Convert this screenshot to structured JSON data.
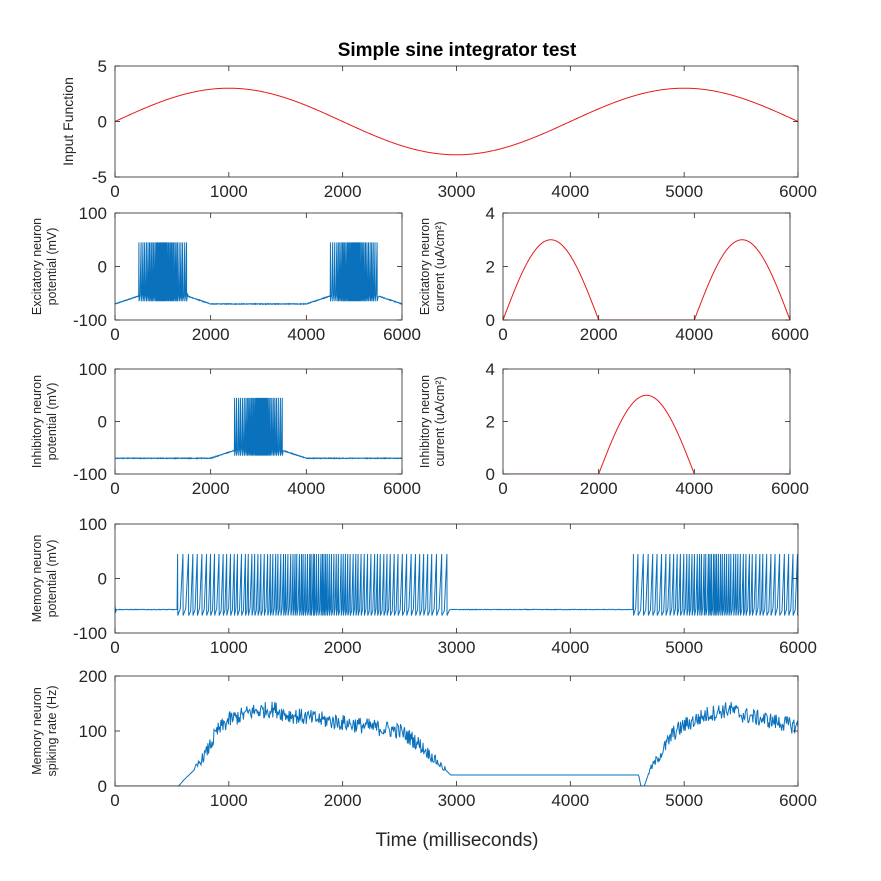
{
  "title": "Simple sine integrator test",
  "colors": {
    "red": "#e8191c",
    "blue": "#0a72bd",
    "axis": "#262626"
  },
  "chart_data": [
    {
      "id": "input",
      "type": "line",
      "title": "Simple sine integrator test",
      "ylabel": [
        "Input Function"
      ],
      "xlabel": "",
      "xlim": [
        0,
        6000
      ],
      "ylim": [
        -5,
        5
      ],
      "xticks": [
        0,
        1000,
        2000,
        3000,
        4000,
        5000,
        6000
      ],
      "yticks": [
        -5,
        0,
        5
      ],
      "series": [
        {
          "color": "red",
          "kind": "sine",
          "amplitude": 3,
          "period": 4000
        }
      ]
    },
    {
      "id": "exc_v",
      "type": "line",
      "ylabel": [
        "Excitatory neuron",
        "potential (mV)"
      ],
      "xlim": [
        0,
        6000
      ],
      "ylim": [
        -100,
        100
      ],
      "xticks": [
        0,
        2000,
        4000,
        6000
      ],
      "yticks": [
        -100,
        0,
        100
      ],
      "series": [
        {
          "color": "blue",
          "kind": "spikes",
          "rest": -70,
          "plateau": -55,
          "peak": 45,
          "trough": -65,
          "bursts": [
            [
              500,
              1500
            ],
            [
              4500,
              5500
            ]
          ],
          "rises": [
            [
              0,
              500,
              1500,
              2000
            ],
            [
              4000,
              4500,
              5500,
              6000
            ]
          ]
        }
      ]
    },
    {
      "id": "exc_i",
      "type": "line",
      "ylabel": [
        "Excitatory neuron",
        "current (uA/cm²)"
      ],
      "xlim": [
        0,
        6000
      ],
      "ylim": [
        0,
        4
      ],
      "xticks": [
        0,
        2000,
        4000,
        6000
      ],
      "yticks": [
        0,
        2,
        4
      ],
      "series": [
        {
          "color": "red",
          "kind": "halfwave",
          "sign": 1,
          "amplitude": 3,
          "period": 4000
        }
      ]
    },
    {
      "id": "inh_v",
      "type": "line",
      "ylabel": [
        "Inhibitory neuron",
        "potential (mV)"
      ],
      "xlim": [
        0,
        6000
      ],
      "ylim": [
        -100,
        100
      ],
      "xticks": [
        0,
        2000,
        4000,
        6000
      ],
      "yticks": [
        -100,
        0,
        100
      ],
      "series": [
        {
          "color": "blue",
          "kind": "spikes",
          "rest": -70,
          "plateau": -55,
          "peak": 45,
          "trough": -65,
          "bursts": [
            [
              2500,
              3500
            ]
          ],
          "rises": [
            [
              2000,
              2500,
              3500,
              4000
            ]
          ]
        }
      ]
    },
    {
      "id": "inh_i",
      "type": "line",
      "ylabel": [
        "Inhibitory neuron",
        "current (uA/cm²)"
      ],
      "xlim": [
        0,
        6000
      ],
      "ylim": [
        0,
        4
      ],
      "xticks": [
        0,
        2000,
        4000,
        6000
      ],
      "yticks": [
        0,
        2,
        4
      ],
      "series": [
        {
          "color": "red",
          "kind": "halfwave",
          "sign": -1,
          "amplitude": 3,
          "period": 4000
        }
      ]
    },
    {
      "id": "mem_v",
      "type": "line",
      "ylabel": [
        "Memory neuron",
        "potential (mV)"
      ],
      "xlim": [
        0,
        6000
      ],
      "ylim": [
        -100,
        100
      ],
      "xticks": [
        0,
        1000,
        2000,
        3000,
        4000,
        5000,
        6000
      ],
      "yticks": [
        -100,
        0,
        100
      ],
      "series": [
        {
          "color": "blue",
          "kind": "spikes",
          "rest": -57,
          "plateau": -57,
          "peak": 45,
          "trough": -68,
          "bursts": [
            [
              550,
              2950
            ],
            [
              4550,
              6000
            ]
          ],
          "rises": []
        }
      ]
    },
    {
      "id": "mem_rate",
      "type": "line",
      "ylabel": [
        "Memory neuron",
        "spiking rate (Hz)"
      ],
      "xlabel": "Time (milliseconds)",
      "xlim": [
        0,
        6000
      ],
      "ylim": [
        0,
        200
      ],
      "xticks": [
        0,
        1000,
        2000,
        3000,
        4000,
        5000,
        6000
      ],
      "yticks": [
        0,
        100,
        200
      ],
      "series": [
        {
          "color": "blue",
          "kind": "rate",
          "envelope": [
            [
              0,
              0
            ],
            [
              560,
              0
            ],
            [
              600,
              10
            ],
            [
              700,
              30
            ],
            [
              800,
              60
            ],
            [
              900,
              100
            ],
            [
              1000,
              120
            ],
            [
              1200,
              135
            ],
            [
              1400,
              140
            ],
            [
              1500,
              130
            ],
            [
              2000,
              115
            ],
            [
              2500,
              100
            ],
            [
              2650,
              80
            ],
            [
              2800,
              50
            ],
            [
              2900,
              30
            ],
            [
              2950,
              20
            ],
            [
              4600,
              20
            ],
            [
              4620,
              0
            ],
            [
              4650,
              0
            ],
            [
              4700,
              30
            ],
            [
              4800,
              60
            ],
            [
              4900,
              95
            ],
            [
              5000,
              110
            ],
            [
              5200,
              130
            ],
            [
              5400,
              140
            ],
            [
              5500,
              130
            ],
            [
              6000,
              108
            ]
          ]
        }
      ]
    }
  ]
}
